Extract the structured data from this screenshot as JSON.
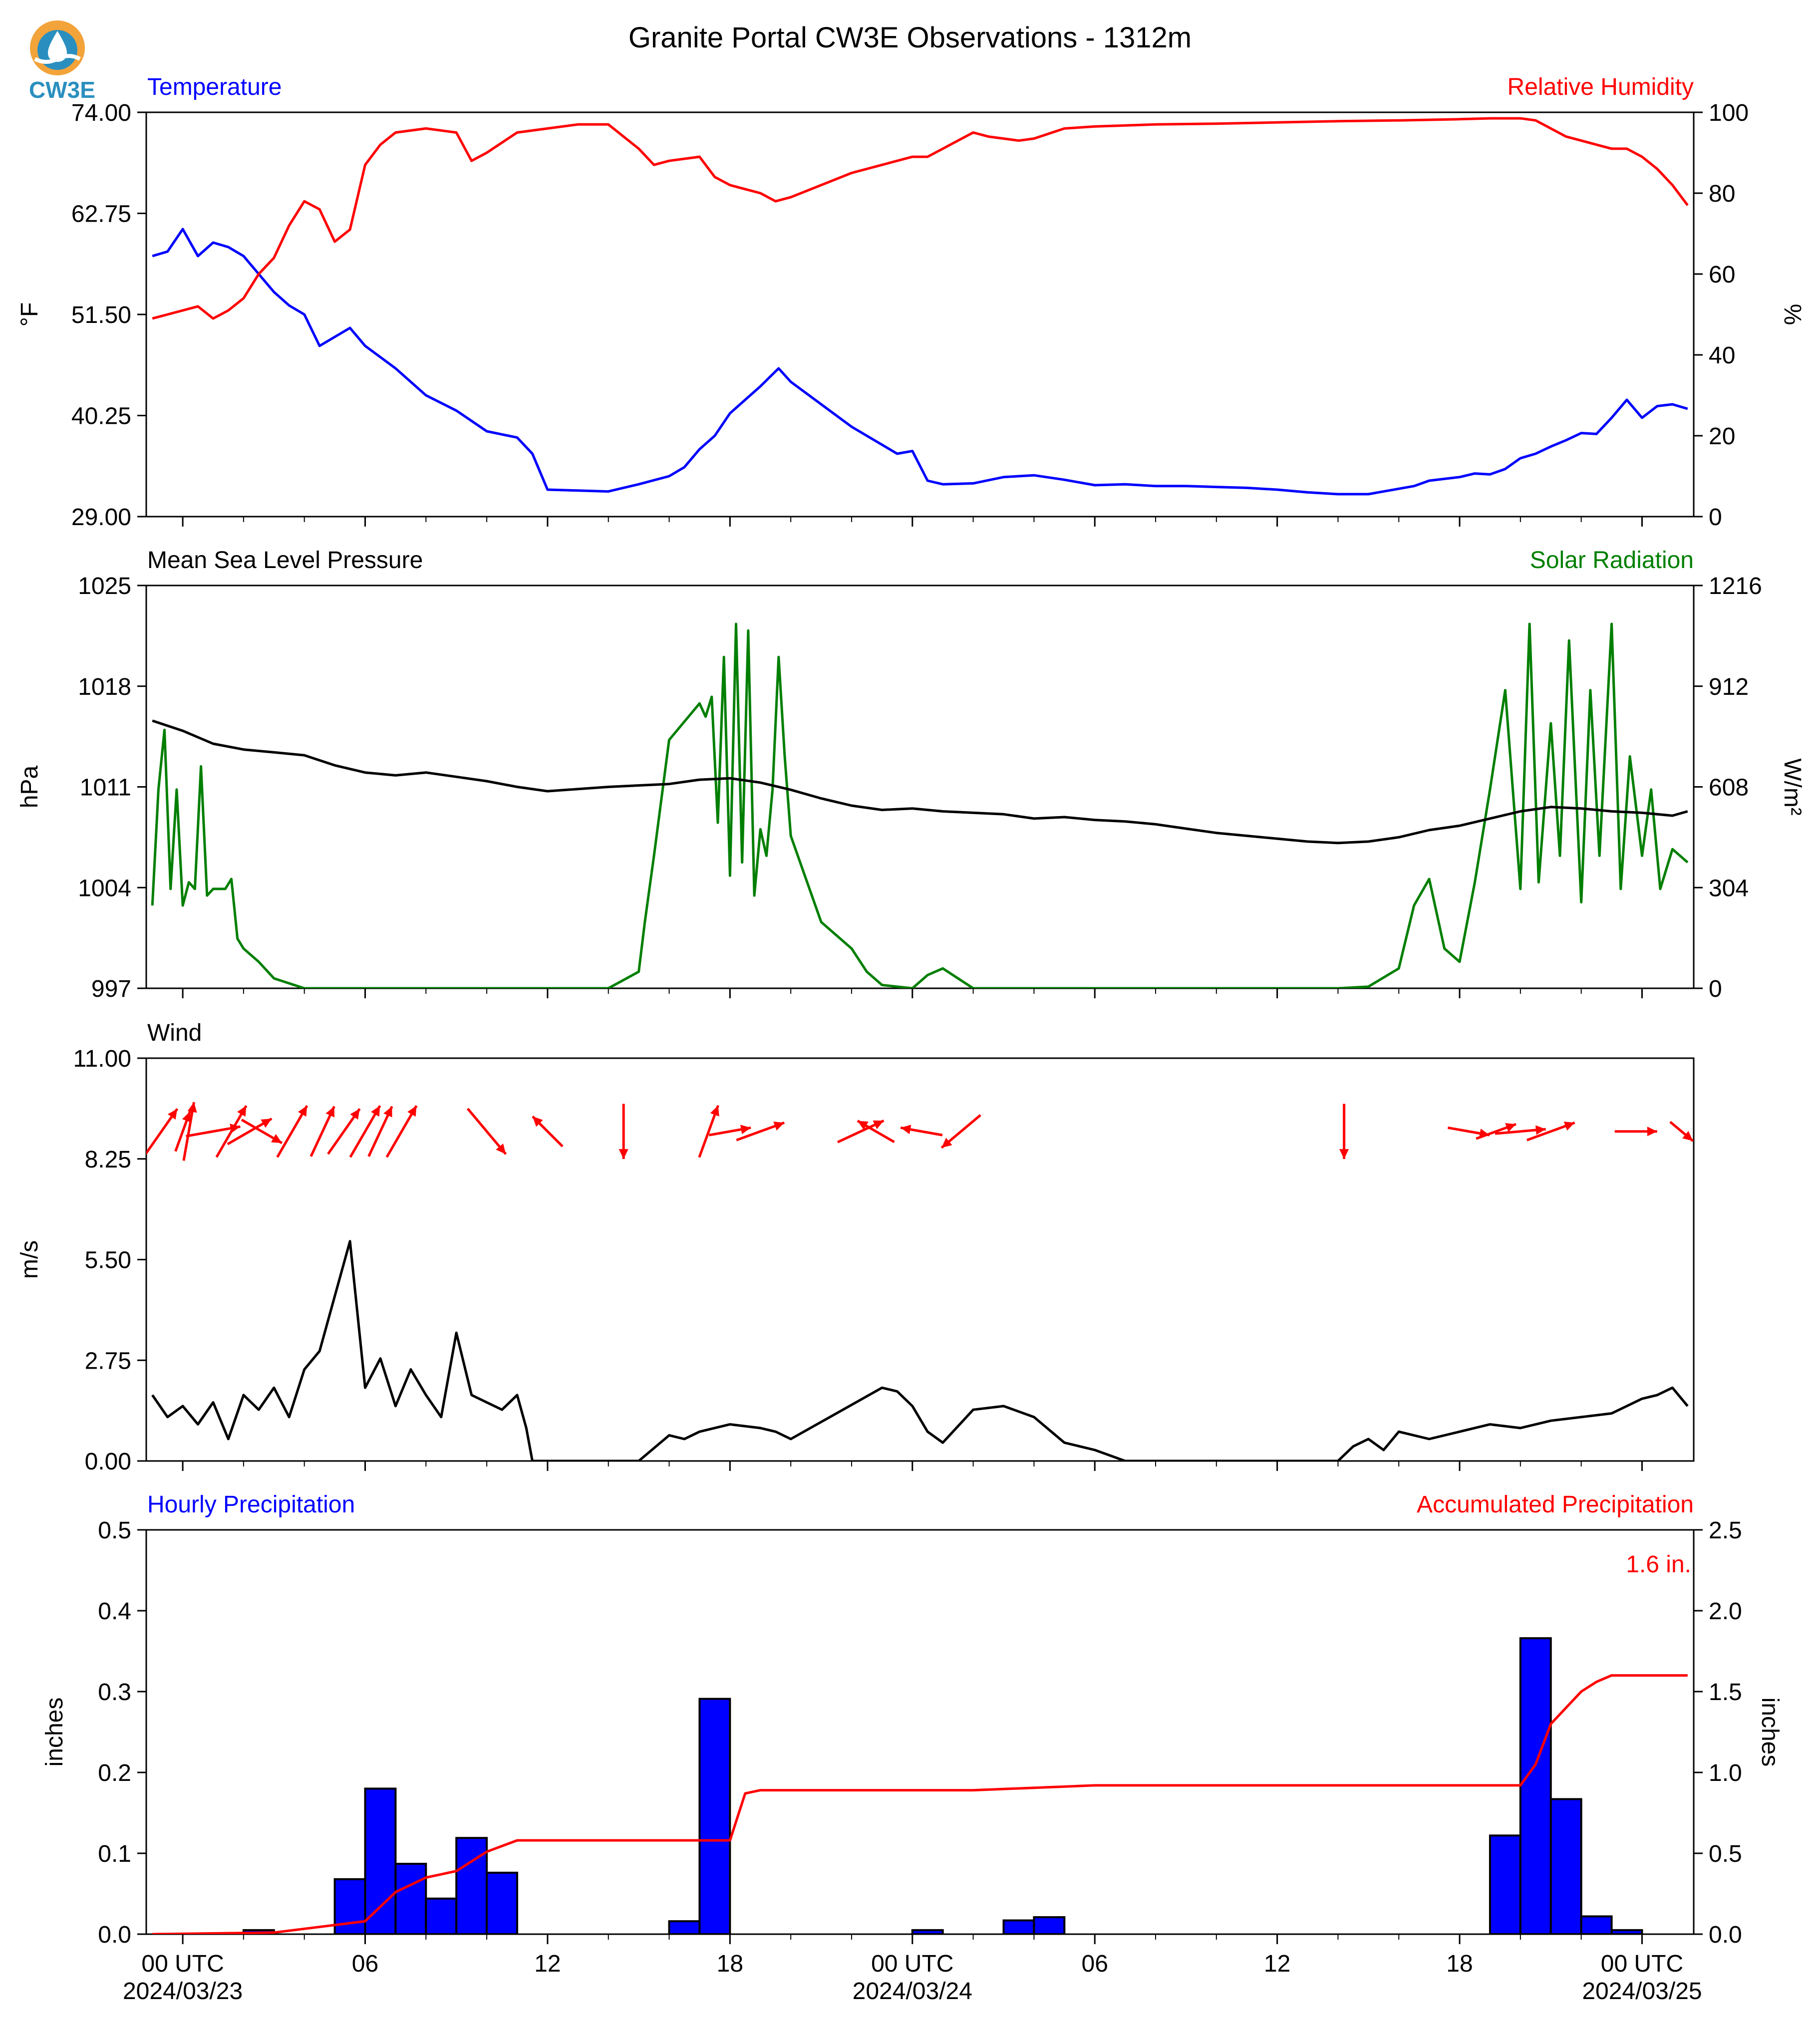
{
  "title": "Granite Portal CW3E Observations - 1312m",
  "logo": {
    "text": "CW3E",
    "icon": "water-drop-sun-icon",
    "colors": {
      "sun": "#f2a33a",
      "water": "#2a8fbf",
      "text": "#2a8fbf"
    }
  },
  "colors": {
    "temperature": "#0000ff",
    "humidity": "#ff0000",
    "pressure": "#000000",
    "solar": "#007f00",
    "wind_arrows": "#ff0000",
    "wind_speed": "#000000",
    "hourly_precip": "#0000ff",
    "accum_precip": "#ff0000"
  },
  "x_axis": {
    "unit": "hours since 2024-03-23 00 UTC (time axis)",
    "range": [
      -1.2,
      49.7
    ],
    "major_ticks": [
      0,
      6,
      12,
      18,
      24,
      30,
      36,
      42,
      48
    ],
    "minor_ticks": [
      2,
      4,
      8,
      10,
      14,
      16,
      20,
      22,
      26,
      28,
      32,
      34,
      38,
      40,
      44,
      46
    ],
    "tick_labels": [
      {
        "line1": "00 UTC",
        "line2": "2024/03/23"
      },
      {
        "line1": "06",
        "line2": ""
      },
      {
        "line1": "12",
        "line2": ""
      },
      {
        "line1": "18",
        "line2": ""
      },
      {
        "line1": "00 UTC",
        "line2": "2024/03/24"
      },
      {
        "line1": "06",
        "line2": ""
      },
      {
        "line1": "12",
        "line2": ""
      },
      {
        "line1": "18",
        "line2": ""
      },
      {
        "line1": "00 UTC",
        "line2": "2024/03/25"
      }
    ]
  },
  "chart_data": [
    {
      "type": "line",
      "panel": "temperature-humidity",
      "left_title": "Temperature",
      "right_title": "Relative Humidity",
      "ylabel": "°F",
      "ylabel_right": "%",
      "ylim": [
        29.0,
        74.0
      ],
      "ylim_right": [
        0,
        100
      ],
      "yticks": [
        "29.00",
        "40.25",
        "51.50",
        "62.75",
        "74.00"
      ],
      "yticks_right": [
        "0",
        "20",
        "40",
        "60",
        "80",
        "100"
      ],
      "series": [
        {
          "axis": "left",
          "x": [
            -1.0,
            -0.5,
            0.0,
            0.5,
            1.0,
            1.5,
            2.0,
            2.5,
            3.0,
            3.5,
            4.0,
            4.5,
            5.0,
            5.5,
            6.0,
            7.0,
            8.0,
            9.0,
            10.0,
            11.0,
            11.5,
            12.0,
            13.0,
            14.0,
            15.0,
            16.0,
            16.5,
            17.0,
            17.5,
            18.0,
            18.5,
            19.0,
            19.3,
            19.6,
            20.0,
            21.0,
            22.0,
            23.0,
            23.5,
            24.0,
            24.5,
            25.0,
            26.0,
            27.0,
            28.0,
            29.0,
            30.0,
            31.0,
            32.0,
            33.0,
            34.0,
            35.0,
            36.0,
            37.0,
            38.0,
            39.0,
            39.5,
            40.0,
            40.5,
            41.0,
            41.5,
            42.0,
            42.5,
            43.0,
            43.5,
            44.0,
            44.5,
            45.0,
            45.5,
            46.0,
            46.5,
            47.0,
            47.5,
            48.0,
            48.5,
            49.0,
            49.5
          ],
          "y": [
            58.0,
            58.5,
            61.0,
            58.0,
            59.5,
            59.0,
            58.0,
            56.0,
            54.0,
            52.5,
            51.5,
            48.0,
            49.0,
            50.0,
            48.0,
            45.5,
            42.5,
            40.8,
            38.5,
            37.8,
            36.0,
            32.0,
            31.9,
            31.8,
            32.6,
            33.5,
            34.5,
            36.5,
            38.0,
            40.5,
            42.0,
            43.5,
            44.5,
            45.5,
            44.0,
            41.5,
            39.0,
            37.0,
            36.0,
            36.3,
            33.0,
            32.6,
            32.7,
            33.4,
            33.6,
            33.1,
            32.5,
            32.6,
            32.4,
            32.4,
            32.3,
            32.2,
            32.0,
            31.7,
            31.5,
            31.5,
            31.8,
            32.1,
            32.4,
            33.0,
            33.2,
            33.4,
            33.8,
            33.7,
            34.3,
            35.5,
            36.0,
            36.8,
            37.5,
            38.3,
            38.2,
            40.0,
            42.0,
            40.0,
            41.3,
            41.5,
            41.0
          ]
        },
        {
          "axis": "right",
          "x": [
            -1.0,
            -0.5,
            0.0,
            0.5,
            1.0,
            1.5,
            2.0,
            2.5,
            3.0,
            3.5,
            4.0,
            4.5,
            5.0,
            5.5,
            6.0,
            6.5,
            7.0,
            8.0,
            9.0,
            9.5,
            10.0,
            11.0,
            12.0,
            13.0,
            14.0,
            15.0,
            15.5,
            16.0,
            17.0,
            17.5,
            18.0,
            18.5,
            19.0,
            19.5,
            20.0,
            21.0,
            22.0,
            23.0,
            24.0,
            24.5,
            25.0,
            26.0,
            26.5,
            27.0,
            27.5,
            28.0,
            29.0,
            30.0,
            32.0,
            34.0,
            36.0,
            38.0,
            40.0,
            42.0,
            43.0,
            44.0,
            44.5,
            45.0,
            45.5,
            46.0,
            46.5,
            47.0,
            47.5,
            48.0,
            48.5,
            49.0,
            49.5
          ],
          "y": [
            49.0,
            50.0,
            51.0,
            52.0,
            49.0,
            51.0,
            54.0,
            60.0,
            64.0,
            72.0,
            78.0,
            76.0,
            68.0,
            71.0,
            87.0,
            92.0,
            95.0,
            96.0,
            95.0,
            88.0,
            90.0,
            95.0,
            96.0,
            97.0,
            97.0,
            91.0,
            87.0,
            88.0,
            89.0,
            84.0,
            82.0,
            81.0,
            80.0,
            78.0,
            79.0,
            82.0,
            85.0,
            87.0,
            89.0,
            89.0,
            91.0,
            95.0,
            94.0,
            93.5,
            93.0,
            93.5,
            96.0,
            96.5,
            97.0,
            97.2,
            97.5,
            97.8,
            98.0,
            98.3,
            98.5,
            98.5,
            98.0,
            96.0,
            94.0,
            93.0,
            92.0,
            91.0,
            91.0,
            89.0,
            86.0,
            82.0,
            77.0
          ]
        }
      ]
    },
    {
      "type": "line",
      "panel": "pressure-solar",
      "left_title": "Mean Sea Level Pressure",
      "right_title": "Solar Radiation",
      "ylabel": "hPa",
      "ylabel_right": "W/m²",
      "ylim": [
        997,
        1025
      ],
      "ylim_right": [
        0,
        1216
      ],
      "yticks": [
        "997",
        "1004",
        "1011",
        "1018",
        "1025"
      ],
      "yticks_right": [
        "0",
        "304",
        "608",
        "912",
        "1216"
      ],
      "series": [
        {
          "axis": "left",
          "x": [
            -1.0,
            0.0,
            1.0,
            2.0,
            3.0,
            4.0,
            5.0,
            6.0,
            7.0,
            8.0,
            9.0,
            10.0,
            11.0,
            12.0,
            14.0,
            16.0,
            17.0,
            18.0,
            19.0,
            20.0,
            21.0,
            22.0,
            23.0,
            24.0,
            25.0,
            26.0,
            27.0,
            28.0,
            29.0,
            30.0,
            31.0,
            32.0,
            33.0,
            34.0,
            35.0,
            36.0,
            37.0,
            38.0,
            39.0,
            40.0,
            41.0,
            42.0,
            43.0,
            44.0,
            45.0,
            46.0,
            47.0,
            48.0,
            49.0,
            49.5
          ],
          "y": [
            1015.6,
            1014.9,
            1014.0,
            1013.6,
            1013.4,
            1013.2,
            1012.5,
            1012.0,
            1011.8,
            1012.0,
            1011.7,
            1011.4,
            1011.0,
            1010.7,
            1011.0,
            1011.2,
            1011.5,
            1011.6,
            1011.3,
            1010.8,
            1010.2,
            1009.7,
            1009.4,
            1009.5,
            1009.3,
            1009.2,
            1009.1,
            1008.8,
            1008.9,
            1008.7,
            1008.6,
            1008.4,
            1008.1,
            1007.8,
            1007.6,
            1007.4,
            1007.2,
            1007.1,
            1007.2,
            1007.5,
            1008.0,
            1008.3,
            1008.8,
            1009.3,
            1009.6,
            1009.5,
            1009.3,
            1009.2,
            1009.0,
            1009.3
          ]
        },
        {
          "axis": "right",
          "x": [
            -1.0,
            -0.8,
            -0.6,
            -0.4,
            -0.2,
            0.0,
            0.2,
            0.4,
            0.6,
            0.8,
            1.0,
            1.2,
            1.4,
            1.6,
            1.8,
            2.0,
            2.5,
            3.0,
            4.0,
            8.0,
            14.0,
            15.0,
            15.2,
            15.5,
            16.0,
            17.0,
            17.2,
            17.4,
            17.6,
            17.8,
            18.0,
            18.2,
            18.4,
            18.6,
            18.8,
            19.0,
            19.2,
            19.4,
            19.6,
            19.8,
            20.0,
            21.0,
            22.0,
            22.5,
            23.0,
            24.0,
            24.5,
            25.0,
            26.0,
            30.0,
            38.0,
            39.0,
            40.0,
            40.5,
            41.0,
            41.5,
            42.0,
            42.5,
            43.0,
            43.5,
            44.0,
            44.3,
            44.6,
            45.0,
            45.3,
            45.6,
            46.0,
            46.3,
            46.6,
            47.0,
            47.3,
            47.6,
            48.0,
            48.3,
            48.6,
            49.0,
            49.5
          ],
          "y": [
            250,
            600,
            780,
            300,
            600,
            250,
            320,
            300,
            670,
            280,
            300,
            300,
            300,
            330,
            150,
            120,
            80,
            30,
            0,
            0,
            0,
            50,
            200,
            400,
            750,
            860,
            820,
            880,
            500,
            1000,
            340,
            1100,
            380,
            1080,
            280,
            480,
            400,
            600,
            1000,
            700,
            460,
            200,
            120,
            50,
            10,
            0,
            40,
            60,
            0,
            0,
            0,
            5,
            60,
            250,
            330,
            120,
            80,
            320,
            600,
            900,
            300,
            1100,
            320,
            800,
            400,
            1050,
            260,
            900,
            400,
            1100,
            300,
            700,
            400,
            600,
            300,
            420,
            380
          ]
        }
      ]
    },
    {
      "type": "line",
      "panel": "wind",
      "left_title": "Wind",
      "ylabel": "m/s",
      "ylim": [
        0.0,
        11.0
      ],
      "yticks": [
        "0.00",
        "2.75",
        "5.50",
        "8.25",
        "11.00"
      ],
      "series": [
        {
          "axis": "left",
          "x": [
            -1.0,
            -0.5,
            0.0,
            0.5,
            1.0,
            1.5,
            2.0,
            2.5,
            3.0,
            3.5,
            4.0,
            4.5,
            5.0,
            5.5,
            6.0,
            6.5,
            7.0,
            7.5,
            8.0,
            8.5,
            9.0,
            9.5,
            10.0,
            10.5,
            11.0,
            11.3,
            11.5,
            15.0,
            16.0,
            16.5,
            17.0,
            18.0,
            19.0,
            19.5,
            20.0,
            23.0,
            23.5,
            24.0,
            24.5,
            25.0,
            26.0,
            27.0,
            28.0,
            29.0,
            30.0,
            31.0,
            32.0,
            38.0,
            38.5,
            39.0,
            39.5,
            40.0,
            41.0,
            42.0,
            43.0,
            44.0,
            45.0,
            46.0,
            47.0,
            47.5,
            48.0,
            48.5,
            49.0,
            49.5
          ],
          "y": [
            1.8,
            1.2,
            1.5,
            1.0,
            1.6,
            0.6,
            1.8,
            1.4,
            2.0,
            1.2,
            2.5,
            3.0,
            4.5,
            6.0,
            2.0,
            2.8,
            1.5,
            2.5,
            1.8,
            1.2,
            3.5,
            1.8,
            1.6,
            1.4,
            1.8,
            0.9,
            0.0,
            0.0,
            0.7,
            0.6,
            0.8,
            1.0,
            0.9,
            0.8,
            0.6,
            2.0,
            1.9,
            1.5,
            0.8,
            0.5,
            1.4,
            1.5,
            1.2,
            0.5,
            0.3,
            0.0,
            0.0,
            0.0,
            0.4,
            0.6,
            0.3,
            0.8,
            0.6,
            0.8,
            1.0,
            0.9,
            1.1,
            1.2,
            1.3,
            1.5,
            1.7,
            1.8,
            2.0,
            1.5
          ]
        }
      ],
      "arrows": [
        {
          "x": -0.7,
          "dir": 35,
          "len": 1.3
        },
        {
          "x": 0.0,
          "dir": 20,
          "len": 1.0
        },
        {
          "x": 0.2,
          "dir": 10,
          "len": 1.4
        },
        {
          "x": 1.0,
          "dir": 80,
          "len": 1.3
        },
        {
          "x": 1.6,
          "dir": 30,
          "len": 1.4
        },
        {
          "x": 2.2,
          "dir": 60,
          "len": 1.2
        },
        {
          "x": 2.6,
          "dir": 120,
          "len": 1.1
        },
        {
          "x": 3.6,
          "dir": 30,
          "len": 1.4
        },
        {
          "x": 4.6,
          "dir": 25,
          "len": 1.3
        },
        {
          "x": 5.3,
          "dir": 35,
          "len": 1.3
        },
        {
          "x": 6.0,
          "dir": 30,
          "len": 1.4
        },
        {
          "x": 6.5,
          "dir": 25,
          "len": 1.3
        },
        {
          "x": 7.2,
          "dir": 30,
          "len": 1.4
        },
        {
          "x": 10.0,
          "dir": 140,
          "len": 1.4
        },
        {
          "x": 12.0,
          "dir": 315,
          "len": 1.0
        },
        {
          "x": 14.5,
          "dir": 180,
          "len": 1.3
        },
        {
          "x": 17.3,
          "dir": 20,
          "len": 1.3
        },
        {
          "x": 18.0,
          "dir": 80,
          "len": 1.0
        },
        {
          "x": 19.0,
          "dir": 70,
          "len": 1.2
        },
        {
          "x": 22.3,
          "dir": 65,
          "len": 1.2
        },
        {
          "x": 22.8,
          "dir": 300,
          "len": 1.0
        },
        {
          "x": 24.3,
          "dir": 280,
          "len": 1.0
        },
        {
          "x": 25.6,
          "dir": 230,
          "len": 1.2
        },
        {
          "x": 38.2,
          "dir": 180,
          "len": 1.3
        },
        {
          "x": 42.3,
          "dir": 100,
          "len": 1.0
        },
        {
          "x": 43.2,
          "dir": 70,
          "len": 1.0
        },
        {
          "x": 44.0,
          "dir": 85,
          "len": 1.2
        },
        {
          "x": 45.0,
          "dir": 70,
          "len": 1.2
        },
        {
          "x": 47.8,
          "dir": 90,
          "len": 1.0
        },
        {
          "x": 49.3,
          "dir": 130,
          "len": 0.7
        }
      ]
    },
    {
      "type": "bar",
      "panel": "precipitation",
      "left_title": "Hourly Precipitation",
      "right_title": "Accumulated Precipitation",
      "ylabel": "inches",
      "ylabel_right": "inches",
      "ylim": [
        0.0,
        0.5
      ],
      "ylim_right": [
        0.0,
        2.5
      ],
      "yticks": [
        "0.0",
        "0.1",
        "0.2",
        "0.3",
        "0.4",
        "0.5"
      ],
      "yticks_right": [
        "0.0",
        "0.5",
        "1.0",
        "1.5",
        "2.0",
        "2.5"
      ],
      "total_annotation": "1.6 in.",
      "bars": {
        "x": [
          3,
          6,
          7,
          8,
          9,
          10,
          11,
          17,
          18,
          25,
          28,
          29,
          44,
          45,
          46,
          47,
          48
        ],
        "values": [
          0.005,
          0.068,
          0.18,
          0.087,
          0.044,
          0.119,
          0.076,
          0.016,
          0.291,
          0.005,
          0.017,
          0.021,
          0.122,
          0.366,
          0.167,
          0.022,
          0.005
        ]
      },
      "accumulated": {
        "x": [
          -1.0,
          3.0,
          6.0,
          7.0,
          8.0,
          9.0,
          10.0,
          11.0,
          18.0,
          18.5,
          19.0,
          26.0,
          30.0,
          44.0,
          44.5,
          45.0,
          46.0,
          46.5,
          47.0,
          47.5,
          49.5
        ],
        "y": [
          0.0,
          0.01,
          0.08,
          0.26,
          0.35,
          0.39,
          0.51,
          0.58,
          0.58,
          0.87,
          0.89,
          0.89,
          0.92,
          0.92,
          1.05,
          1.3,
          1.5,
          1.56,
          1.6,
          1.6,
          1.6
        ]
      }
    }
  ]
}
